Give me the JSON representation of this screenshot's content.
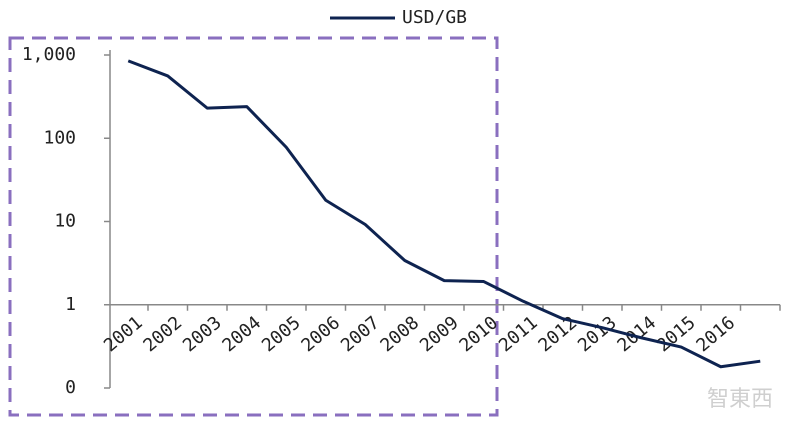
{
  "chart_data": {
    "type": "line",
    "categories": [
      "2001",
      "2002",
      "2003",
      "2004",
      "2005",
      "2006",
      "2007",
      "2008",
      "2009",
      "2010",
      "2011",
      "2012",
      "2013",
      "2014",
      "2015",
      "2016",
      null
    ],
    "series": [
      {
        "name": "USD/GB",
        "color": "#0e2350",
        "values": [
          850,
          560,
          230,
          240,
          78,
          18,
          9.2,
          3.4,
          1.95,
          1.9,
          1.1,
          0.68,
          0.53,
          0.4,
          0.31,
          0.18,
          0.21
        ]
      }
    ],
    "ylim": [
      0.1,
      1000
    ],
    "yticks": [
      {
        "value": 0.1,
        "label": "0"
      },
      1,
      10,
      100,
      {
        "value": 1000,
        "label": "1,000"
      }
    ],
    "log_scale": true,
    "grid": false,
    "legend": "top",
    "watermark": "智東西"
  }
}
